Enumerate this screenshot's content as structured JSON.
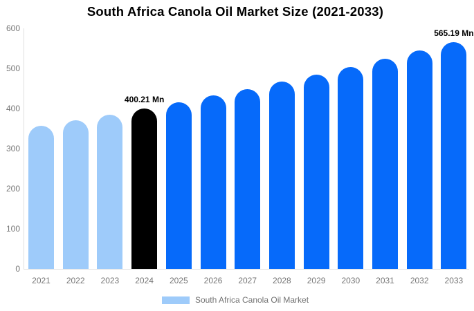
{
  "title": "South Africa Canola Oil Market Size (2021-2033)",
  "legend": {
    "label": "South Africa Canola Oil Market",
    "swatch_color": "#9ECBFA"
  },
  "colors": {
    "past": "#9ECBFA",
    "current": "#000000",
    "forecast": "#066AFA",
    "axis": "#dedede",
    "tick_text": "#757575",
    "title_text": "#000000"
  },
  "chart_data": {
    "type": "bar",
    "title": "South Africa Canola Oil Market Size (2021-2033)",
    "xlabel": "",
    "ylabel": "",
    "categories": [
      "2021",
      "2022",
      "2023",
      "2024",
      "2025",
      "2026",
      "2027",
      "2028",
      "2029",
      "2030",
      "2031",
      "2032",
      "2033"
    ],
    "values": [
      356.5,
      370.4,
      385.0,
      400.21,
      415.9,
      432.2,
      449.1,
      466.8,
      485.1,
      504.1,
      523.8,
      544.2,
      565.19
    ],
    "bar_roles": [
      "past",
      "past",
      "past",
      "current",
      "forecast",
      "forecast",
      "forecast",
      "forecast",
      "forecast",
      "forecast",
      "forecast",
      "forecast",
      "forecast"
    ],
    "annotations": [
      {
        "category": "2024",
        "text": "400.21 Mn"
      },
      {
        "category": "2033",
        "text": "565.19 Mn"
      }
    ],
    "ylim": [
      0,
      600
    ],
    "yticks": [
      0,
      100,
      200,
      300,
      400,
      500,
      600
    ],
    "grid": false,
    "legend_position": "bottom",
    "legend_entries": [
      "South Africa Canola Oil Market"
    ]
  }
}
